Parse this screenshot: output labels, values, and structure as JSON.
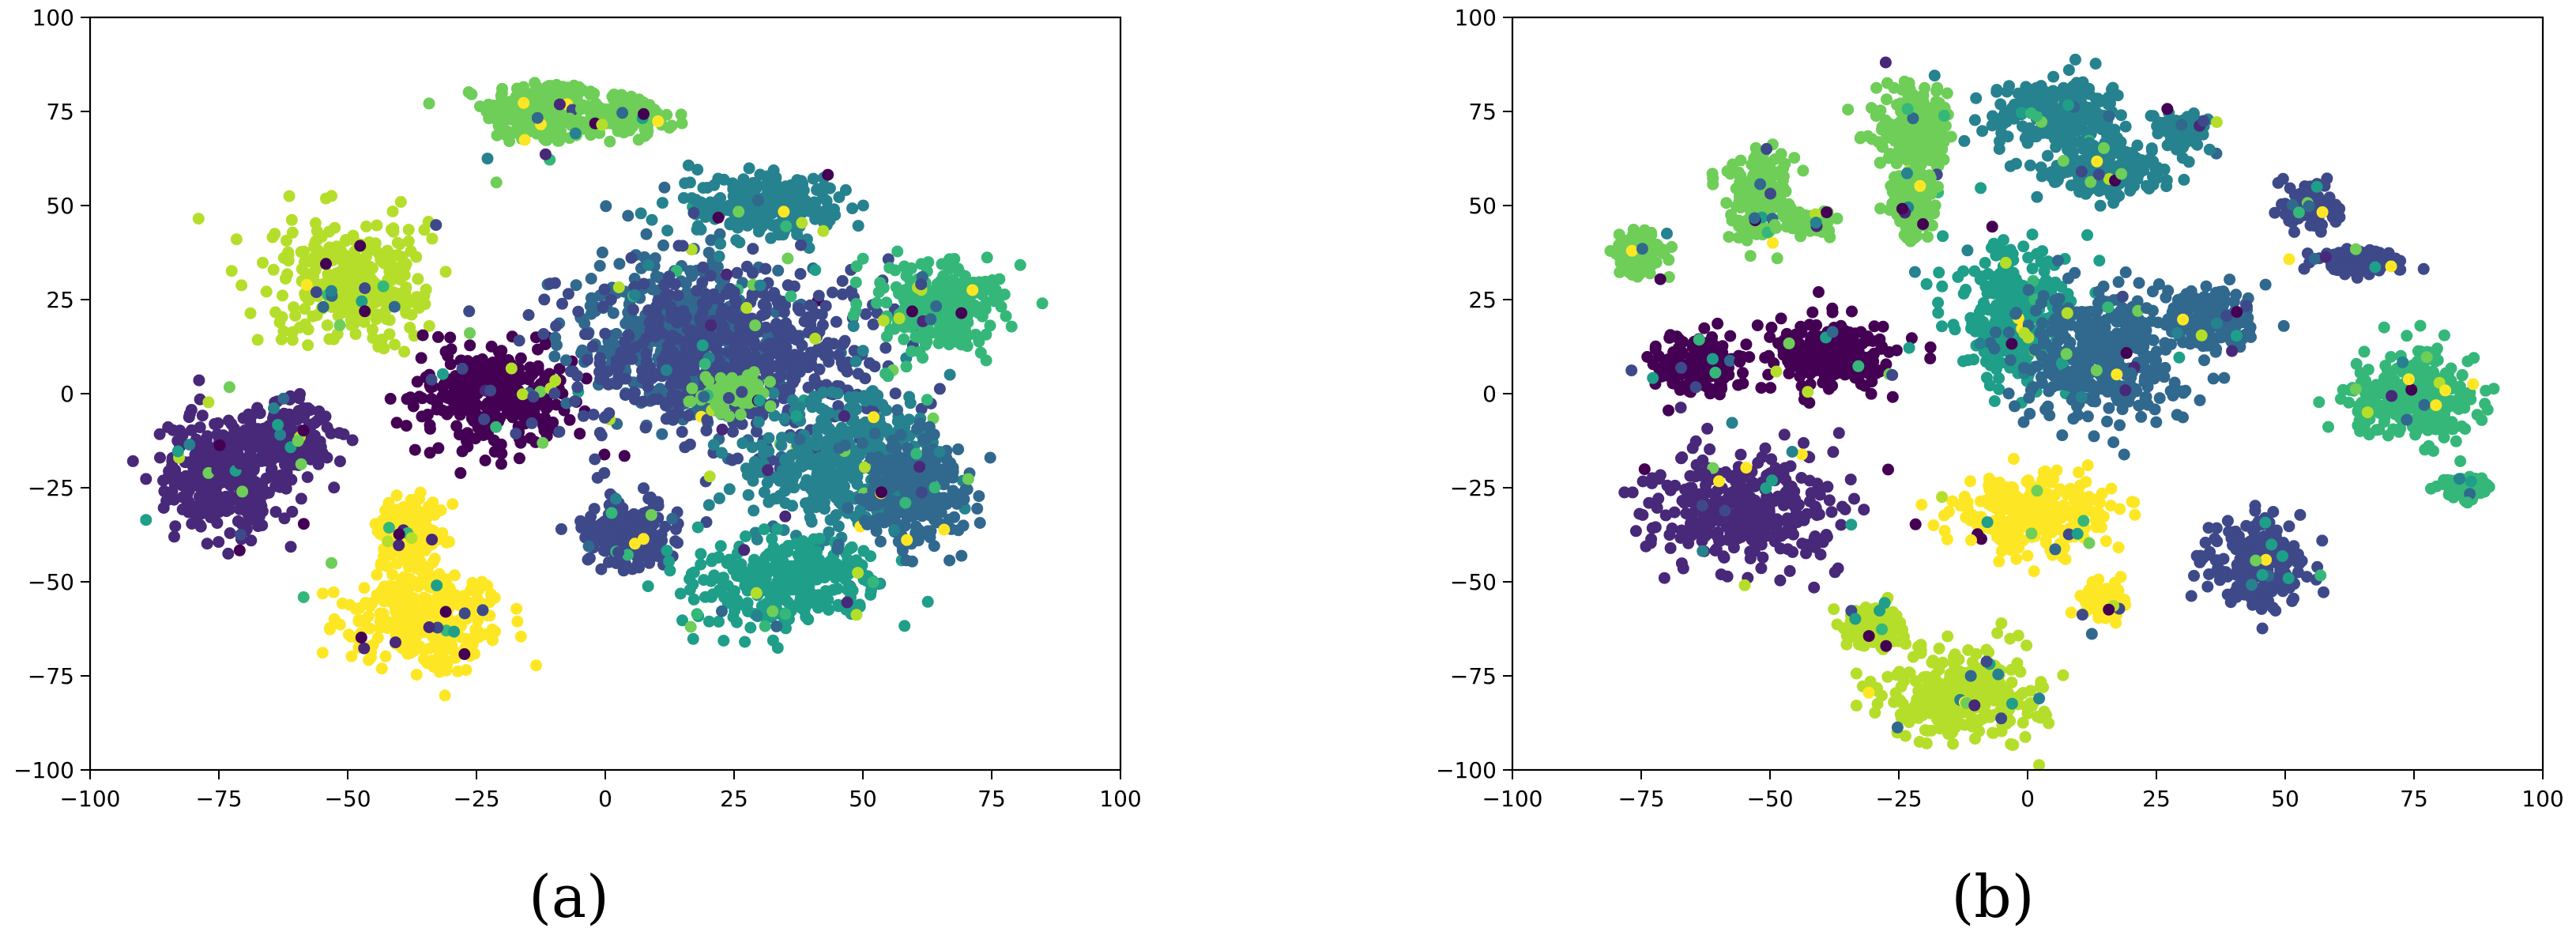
{
  "panels": [
    {
      "label": "(a)"
    },
    {
      "label": "(b)"
    }
  ],
  "palette": {
    "0": "#440154",
    "1": "#482878",
    "2": "#3e4989",
    "3": "#31688e",
    "4": "#26828e",
    "5": "#1f9e89",
    "6": "#35b779",
    "7": "#6ece58",
    "8": "#b5de2b",
    "9": "#fde725"
  },
  "chart_data": [
    {
      "type": "scatter",
      "panel": "(a)",
      "xlim": [
        -100,
        100
      ],
      "ylim": [
        -100,
        100
      ],
      "x_ticks": [
        "−100",
        "−75",
        "−50",
        "−25",
        "0",
        "25",
        "50",
        "75",
        "100"
      ],
      "y_ticks": [
        "100",
        "75",
        "50",
        "25",
        "0",
        "−25",
        "−50",
        "−75",
        "−100"
      ],
      "grid": false,
      "clusters": [
        {
          "cls": 7,
          "x": -13,
          "y": 75,
          "sx": 7,
          "sy": 6
        },
        {
          "cls": 7,
          "x": 3,
          "y": 74,
          "sx": 6,
          "sy": 3
        },
        {
          "cls": 8,
          "x": -50,
          "y": 30,
          "sx": 10,
          "sy": 10
        },
        {
          "cls": 0,
          "x": -22,
          "y": 0,
          "sx": 10,
          "sy": 9
        },
        {
          "cls": 1,
          "x": -75,
          "y": -22,
          "sx": 8,
          "sy": 11
        },
        {
          "cls": 1,
          "x": -62,
          "y": -12,
          "sx": 6,
          "sy": 6
        },
        {
          "cls": 9,
          "x": -35,
          "y": -60,
          "sx": 10,
          "sy": 9
        },
        {
          "cls": 9,
          "x": -38,
          "y": -37,
          "sx": 4,
          "sy": 6
        },
        {
          "cls": 2,
          "x": 5,
          "y": -37,
          "sx": 6,
          "sy": 6
        },
        {
          "cls": 3,
          "x": 15,
          "y": 15,
          "sx": 13,
          "sy": 15
        },
        {
          "cls": 4,
          "x": 30,
          "y": 50,
          "sx": 9,
          "sy": 6
        },
        {
          "cls": 2,
          "x": 25,
          "y": 10,
          "sx": 20,
          "sy": 15
        },
        {
          "cls": 4,
          "x": 45,
          "y": -18,
          "sx": 12,
          "sy": 12
        },
        {
          "cls": 5,
          "x": 35,
          "y": -50,
          "sx": 12,
          "sy": 8
        },
        {
          "cls": 6,
          "x": 65,
          "y": 23,
          "sx": 8,
          "sy": 8
        },
        {
          "cls": 3,
          "x": 60,
          "y": -25,
          "sx": 7,
          "sy": 10
        },
        {
          "cls": 7,
          "x": 25,
          "y": 0,
          "sx": 4,
          "sy": 3
        }
      ]
    },
    {
      "type": "scatter",
      "panel": "(b)",
      "xlim": [
        -100,
        100
      ],
      "ylim": [
        -100,
        100
      ],
      "x_ticks": [
        "−100",
        "−75",
        "−50",
        "−25",
        "0",
        "25",
        "50",
        "75",
        "100"
      ],
      "y_ticks": [
        "100",
        "75",
        "50",
        "25",
        "0",
        "−25",
        "−50",
        "−75",
        "−100"
      ],
      "grid": false,
      "clusters": [
        {
          "cls": 7,
          "x": -75,
          "y": 37,
          "sx": 3,
          "sy": 4
        },
        {
          "cls": 7,
          "x": -52,
          "y": 52,
          "sx": 4,
          "sy": 8
        },
        {
          "cls": 7,
          "x": -42,
          "y": 45,
          "sx": 3,
          "sy": 2
        },
        {
          "cls": 7,
          "x": -22,
          "y": 70,
          "sx": 5,
          "sy": 8
        },
        {
          "cls": 7,
          "x": -22,
          "y": 50,
          "sx": 3,
          "sy": 6
        },
        {
          "cls": 0,
          "x": -63,
          "y": 8,
          "sx": 6,
          "sy": 5
        },
        {
          "cls": 0,
          "x": -38,
          "y": 10,
          "sx": 8,
          "sy": 6
        },
        {
          "cls": 1,
          "x": -55,
          "y": -30,
          "sx": 12,
          "sy": 10
        },
        {
          "cls": 9,
          "x": 2,
          "y": -32,
          "sx": 10,
          "sy": 7
        },
        {
          "cls": 9,
          "x": 15,
          "y": -55,
          "sx": 3,
          "sy": 3
        },
        {
          "cls": 8,
          "x": -12,
          "y": -80,
          "sx": 10,
          "sy": 8
        },
        {
          "cls": 8,
          "x": -30,
          "y": -62,
          "sx": 4,
          "sy": 4
        },
        {
          "cls": 4,
          "x": 5,
          "y": 75,
          "sx": 8,
          "sy": 6
        },
        {
          "cls": 4,
          "x": 15,
          "y": 60,
          "sx": 8,
          "sy": 5
        },
        {
          "cls": 4,
          "x": 30,
          "y": 70,
          "sx": 3,
          "sy": 3
        },
        {
          "cls": 5,
          "x": -3,
          "y": 20,
          "sx": 7,
          "sy": 12
        },
        {
          "cls": 3,
          "x": 15,
          "y": 10,
          "sx": 10,
          "sy": 12
        },
        {
          "cls": 3,
          "x": 35,
          "y": 20,
          "sx": 6,
          "sy": 6
        },
        {
          "cls": 2,
          "x": 45,
          "y": -45,
          "sx": 6,
          "sy": 8
        },
        {
          "cls": 2,
          "x": 65,
          "y": 35,
          "sx": 6,
          "sy": 2
        },
        {
          "cls": 2,
          "x": 55,
          "y": 50,
          "sx": 3,
          "sy": 4
        },
        {
          "cls": 6,
          "x": 75,
          "y": 0,
          "sx": 8,
          "sy": 8
        },
        {
          "cls": 6,
          "x": 85,
          "y": -25,
          "sx": 3,
          "sy": 2
        }
      ]
    }
  ]
}
